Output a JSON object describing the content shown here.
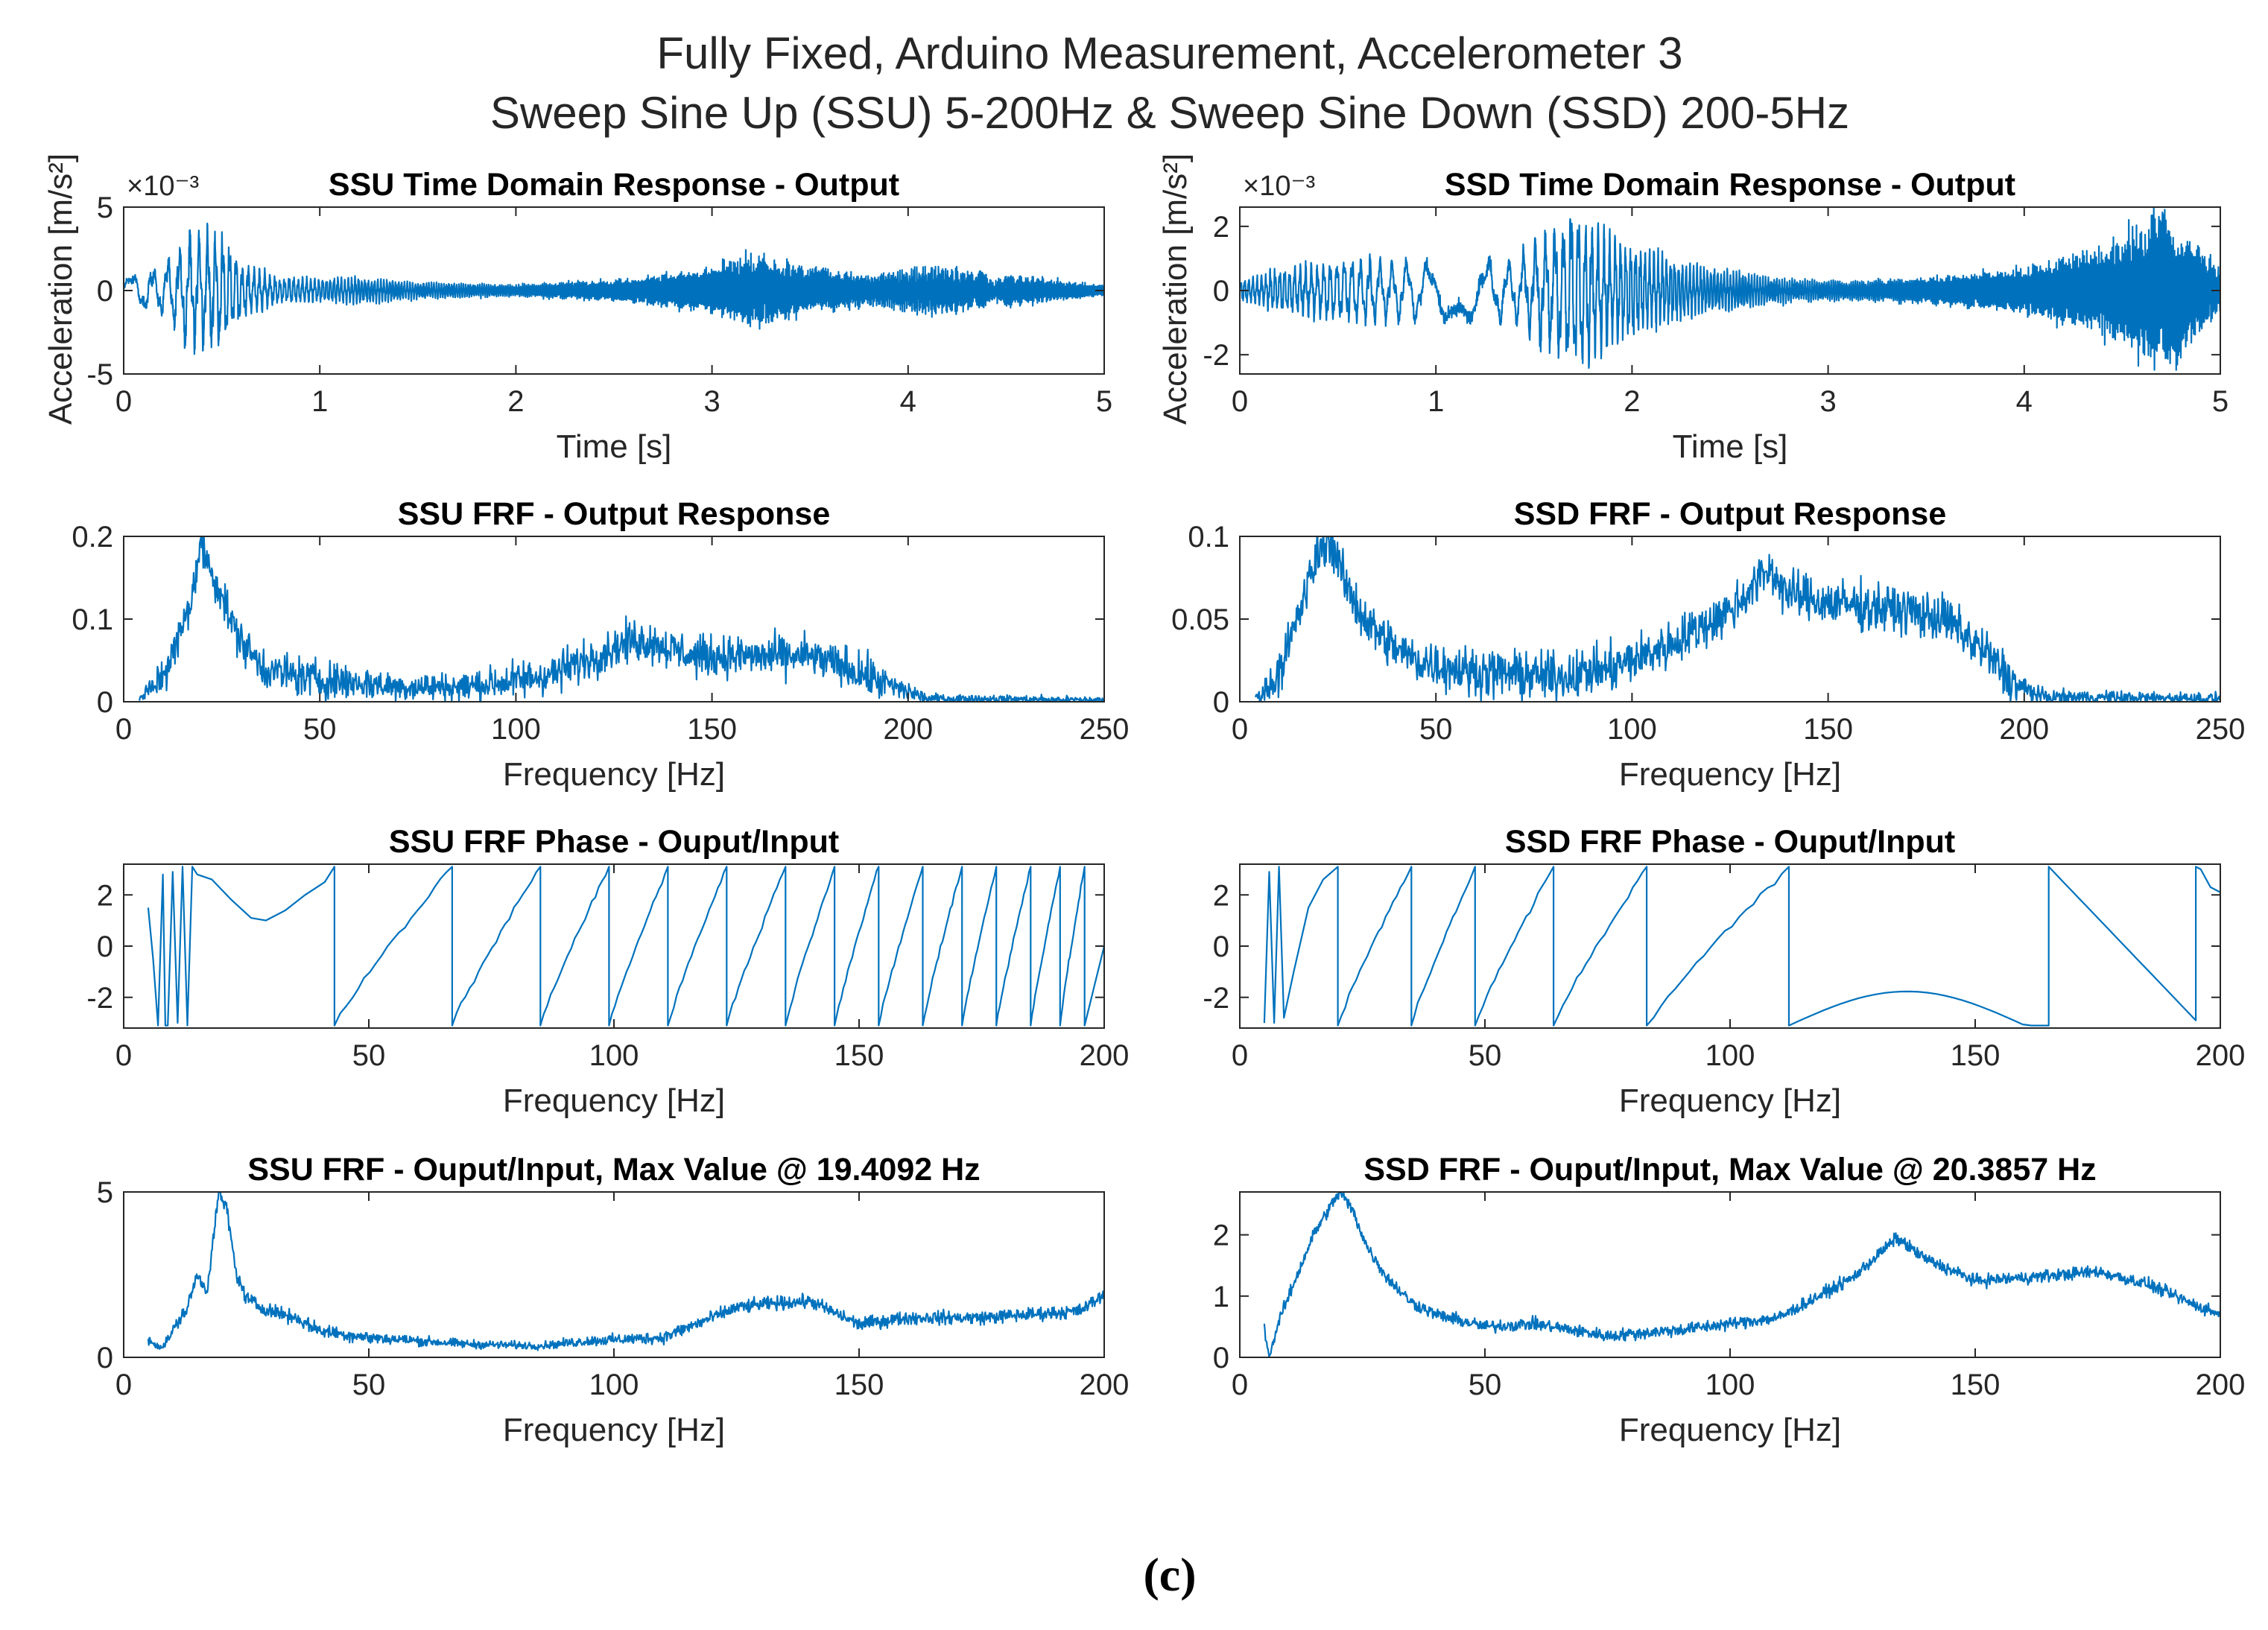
{
  "figure": {
    "title_line1": "Fully Fixed, Arduino Measurement, Accelerometer 3",
    "title_line2": "Sweep Sine Up (SSU) 5-200Hz & Sweep Sine Down (SSD) 200-5Hz",
    "caption": "(c)",
    "shared_ylabel": "Acceleration [m/s²]",
    "line_color": "#0072BD"
  },
  "chart_data": [
    {
      "id": "ssu-time",
      "type": "line",
      "title": "SSU Time Domain Response - Output",
      "xlabel": "Time [s]",
      "ylabel": "Acceleration [m/s²]",
      "exponent": "×10⁻³",
      "xlim": [
        0,
        5
      ],
      "ylim": [
        -5,
        5
      ],
      "xticks": [
        0,
        1,
        2,
        3,
        4,
        5
      ],
      "yticks": [
        -5,
        0,
        5
      ],
      "generator": "ssu_time",
      "envelope": [
        [
          0,
          0.9
        ],
        [
          0.2,
          1.5
        ],
        [
          0.35,
          3.5
        ],
        [
          0.5,
          3.5
        ],
        [
          0.6,
          1.6
        ],
        [
          0.8,
          0.8
        ],
        [
          1.0,
          0.7
        ],
        [
          1.2,
          0.8
        ],
        [
          1.5,
          0.5
        ],
        [
          2.0,
          0.35
        ],
        [
          2.5,
          0.6
        ],
        [
          2.8,
          1.0
        ],
        [
          3.0,
          1.4
        ],
        [
          3.2,
          2.2
        ],
        [
          3.5,
          1.4
        ],
        [
          3.8,
          0.9
        ],
        [
          4.1,
          1.5
        ],
        [
          4.5,
          1.0
        ],
        [
          5.0,
          0.3
        ]
      ]
    },
    {
      "id": "ssd-time",
      "type": "line",
      "title": "SSD Time Domain Response - Output",
      "xlabel": "Time [s]",
      "ylabel": "Acceleration [m/s²]",
      "exponent": "×10⁻³",
      "xlim": [
        0,
        5
      ],
      "ylim": [
        -2.6,
        2.6
      ],
      "xticks": [
        0,
        1,
        2,
        3,
        4,
        5
      ],
      "yticks": [
        -2,
        0,
        2
      ],
      "generator": "ssd_time",
      "envelope": [
        [
          0,
          0.3
        ],
        [
          0.3,
          0.8
        ],
        [
          0.6,
          1.0
        ],
        [
          1.0,
          0.9
        ],
        [
          1.4,
          1.0
        ],
        [
          1.7,
          2.5
        ],
        [
          2.0,
          1.4
        ],
        [
          2.4,
          0.7
        ],
        [
          2.8,
          0.35
        ],
        [
          3.2,
          0.3
        ],
        [
          3.5,
          0.4
        ],
        [
          3.9,
          0.6
        ],
        [
          4.2,
          1.0
        ],
        [
          4.5,
          1.6
        ],
        [
          4.7,
          2.6
        ],
        [
          5.0,
          0.7
        ]
      ]
    },
    {
      "id": "ssu-frf-output",
      "type": "line",
      "title": "SSU FRF - Output Response",
      "xlabel": "Frequency [Hz]",
      "ylabel": "",
      "xlim": [
        0,
        250
      ],
      "ylim": [
        0,
        0.2
      ],
      "xticks": [
        0,
        50,
        100,
        150,
        200,
        250
      ],
      "yticks": [
        0,
        0.1,
        0.2
      ],
      "generator": "noisy_curve",
      "noise": 0.012,
      "x_range": [
        4,
        250
      ],
      "baseline": [
        [
          4,
          0.003
        ],
        [
          8,
          0.02
        ],
        [
          12,
          0.05
        ],
        [
          15,
          0.09
        ],
        [
          17,
          0.12
        ],
        [
          19,
          0.17
        ],
        [
          20,
          0.19
        ],
        [
          22,
          0.16
        ],
        [
          25,
          0.13
        ],
        [
          28,
          0.09
        ],
        [
          32,
          0.06
        ],
        [
          36,
          0.04
        ],
        [
          40,
          0.035
        ],
        [
          45,
          0.03
        ],
        [
          55,
          0.025
        ],
        [
          70,
          0.018
        ],
        [
          85,
          0.018
        ],
        [
          100,
          0.025
        ],
        [
          110,
          0.035
        ],
        [
          120,
          0.055
        ],
        [
          130,
          0.075
        ],
        [
          135,
          0.072
        ],
        [
          145,
          0.055
        ],
        [
          160,
          0.055
        ],
        [
          175,
          0.055
        ],
        [
          185,
          0.04
        ],
        [
          195,
          0.02
        ],
        [
          205,
          0.004
        ],
        [
          250,
          0.002
        ]
      ]
    },
    {
      "id": "ssd-frf-output",
      "type": "line",
      "title": "SSD FRF - Output Response",
      "xlabel": "Frequency [Hz]",
      "ylabel": "",
      "xlim": [
        0,
        250
      ],
      "ylim": [
        0,
        0.1
      ],
      "xticks": [
        0,
        50,
        100,
        150,
        200,
        250
      ],
      "yticks": [
        0,
        0.05,
        0.1
      ],
      "generator": "noisy_curve",
      "noise": 0.007,
      "x_range": [
        4,
        250
      ],
      "baseline": [
        [
          4,
          0.002
        ],
        [
          8,
          0.01
        ],
        [
          12,
          0.03
        ],
        [
          16,
          0.06
        ],
        [
          20,
          0.09
        ],
        [
          23,
          0.1
        ],
        [
          27,
          0.07
        ],
        [
          32,
          0.05
        ],
        [
          38,
          0.035
        ],
        [
          45,
          0.025
        ],
        [
          60,
          0.018
        ],
        [
          80,
          0.015
        ],
        [
          95,
          0.02
        ],
        [
          110,
          0.035
        ],
        [
          125,
          0.055
        ],
        [
          135,
          0.08
        ],
        [
          140,
          0.065
        ],
        [
          150,
          0.06
        ],
        [
          170,
          0.055
        ],
        [
          180,
          0.05
        ],
        [
          190,
          0.03
        ],
        [
          198,
          0.01
        ],
        [
          205,
          0.003
        ],
        [
          250,
          0.002
        ]
      ]
    },
    {
      "id": "ssu-frf-phase",
      "type": "line",
      "title": "SSU FRF Phase - Ouput/Input",
      "xlabel": "Frequency [Hz]",
      "ylabel": "",
      "xlim": [
        0,
        200
      ],
      "ylim": [
        -3.2,
        3.2
      ],
      "xticks": [
        0,
        50,
        100,
        150,
        200
      ],
      "yticks": [
        -2,
        0,
        2
      ],
      "generator": "phase_ssu",
      "wrap_points": [
        43,
        67,
        85,
        99,
        111,
        123,
        135,
        145,
        154,
        163,
        171,
        178,
        185,
        191,
        196
      ]
    },
    {
      "id": "ssd-frf-phase",
      "type": "line",
      "title": "SSD FRF Phase - Ouput/Input",
      "xlabel": "Frequency [Hz]",
      "ylabel": "",
      "xlim": [
        0,
        200
      ],
      "ylim": [
        -3.2,
        3.2
      ],
      "xticks": [
        0,
        50,
        100,
        150,
        200
      ],
      "yticks": [
        -2,
        0,
        2
      ],
      "generator": "phase_ssd",
      "wrap_points": [
        20,
        35,
        48,
        64,
        83,
        112,
        165,
        195
      ]
    },
    {
      "id": "ssu-frf-ratio",
      "type": "line",
      "title": "SSU FRF - Ouput/Input, Max Value @ 19.4092 Hz",
      "xlabel": "Frequency [Hz]",
      "ylabel": "",
      "xlim": [
        0,
        200
      ],
      "ylim": [
        0,
        5
      ],
      "xticks": [
        0,
        50,
        100,
        150,
        200
      ],
      "yticks": [
        0,
        5
      ],
      "generator": "noisy_curve",
      "noise": 0.1,
      "x_range": [
        5,
        200
      ],
      "baseline": [
        [
          5,
          0.5
        ],
        [
          8,
          0.3
        ],
        [
          10,
          0.8
        ],
        [
          13,
          1.5
        ],
        [
          15,
          2.5
        ],
        [
          17,
          2.0
        ],
        [
          19.4,
          5.0
        ],
        [
          21,
          4.5
        ],
        [
          23,
          2.5
        ],
        [
          25,
          1.8
        ],
        [
          28,
          1.5
        ],
        [
          35,
          1.2
        ],
        [
          40,
          0.8
        ],
        [
          50,
          0.6
        ],
        [
          70,
          0.4
        ],
        [
          85,
          0.35
        ],
        [
          95,
          0.5
        ],
        [
          110,
          0.6
        ],
        [
          120,
          1.2
        ],
        [
          125,
          1.5
        ],
        [
          130,
          1.6
        ],
        [
          140,
          1.7
        ],
        [
          150,
          1.0
        ],
        [
          160,
          1.2
        ],
        [
          175,
          1.2
        ],
        [
          195,
          1.4
        ],
        [
          200,
          1.9
        ]
      ]
    },
    {
      "id": "ssd-frf-ratio",
      "type": "line",
      "title": "SSD FRF - Ouput/Input, Max Value @ 20.3857 Hz",
      "xlabel": "Frequency [Hz]",
      "ylabel": "",
      "xlim": [
        0,
        200
      ],
      "ylim": [
        0,
        2.7
      ],
      "xticks": [
        0,
        50,
        100,
        150,
        200
      ],
      "yticks": [
        0,
        1,
        2
      ],
      "generator": "noisy_curve",
      "noise": 0.05,
      "x_range": [
        5,
        200
      ],
      "baseline": [
        [
          5,
          0.5
        ],
        [
          6,
          0.0
        ],
        [
          8,
          0.6
        ],
        [
          12,
          1.4
        ],
        [
          15,
          2.0
        ],
        [
          18,
          2.4
        ],
        [
          20.4,
          2.7
        ],
        [
          23,
          2.4
        ],
        [
          26,
          1.8
        ],
        [
          30,
          1.3
        ],
        [
          35,
          0.9
        ],
        [
          40,
          0.7
        ],
        [
          50,
          0.5
        ],
        [
          60,
          0.55
        ],
        [
          75,
          0.35
        ],
        [
          90,
          0.45
        ],
        [
          110,
          0.65
        ],
        [
          125,
          1.3
        ],
        [
          134,
          1.95
        ],
        [
          140,
          1.6
        ],
        [
          150,
          1.25
        ],
        [
          160,
          1.3
        ],
        [
          175,
          1.4
        ],
        [
          185,
          1.2
        ],
        [
          195,
          0.85
        ],
        [
          200,
          0.7
        ]
      ]
    }
  ]
}
